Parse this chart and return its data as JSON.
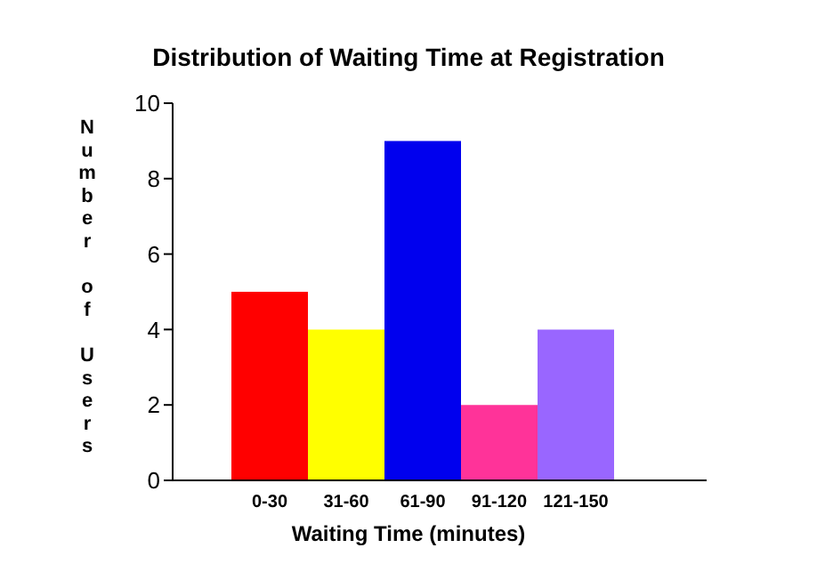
{
  "chart_data": {
    "type": "bar",
    "title": "Distribution of Waiting Time at Registration",
    "xlabel": "Waiting Time (minutes)",
    "ylabel": "Number of Users",
    "categories": [
      "0-30",
      "31-60",
      "61-90",
      "91-120",
      "121-150"
    ],
    "values": [
      5,
      4,
      9,
      2,
      4
    ],
    "colors": [
      "#ff0000",
      "#ffff00",
      "#0000ee",
      "#ff3399",
      "#9966ff"
    ],
    "ylim": [
      0,
      10
    ],
    "yticks": [
      0,
      2,
      4,
      6,
      8,
      10
    ],
    "grid": false,
    "legend": false
  }
}
